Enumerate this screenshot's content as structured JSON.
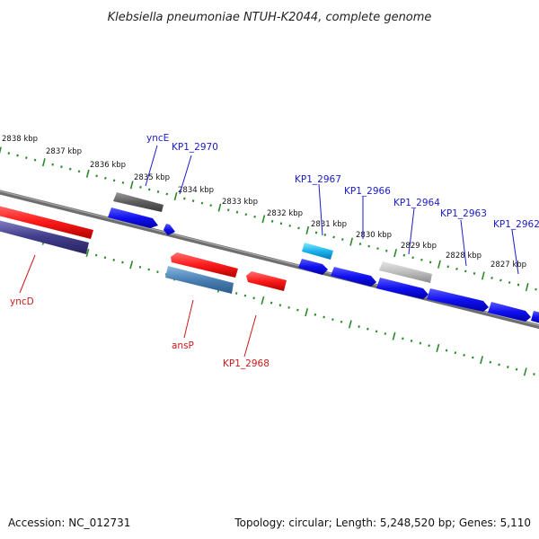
{
  "title": "Klebsiella pneumoniae NTUH-K2044, complete genome",
  "footer": {
    "accession": "Accession: NC_012731",
    "summary": "Topology: circular; Length: 5,248,520 bp; Genes: 5,110"
  },
  "colors": {
    "backbone": "#7a7a7a",
    "tick": "#2a8a2a",
    "plus_label": "#1a1acc",
    "minus_label": "#cc1a1a"
  },
  "tick_labels": [
    "2838 kbp",
    "2837 kbp",
    "2836 kbp",
    "2835 kbp",
    "2834 kbp",
    "2833 kbp",
    "2832 kbp",
    "2831 kbp",
    "2830 kbp",
    "2829 kbp",
    "2828 kbp",
    "2827 kbp"
  ],
  "gene_labels": {
    "yncE": "yncE",
    "KP1_2970": "KP1_2970",
    "KP1_2967": "KP1_2967",
    "KP1_2966": "KP1_2966",
    "KP1_2964": "KP1_2964",
    "KP1_2963": "KP1_2963",
    "KP1_2962": "KP1_2962",
    "yncD": "yncD",
    "ansP": "ansP",
    "KP1_2968": "KP1_2968"
  }
}
